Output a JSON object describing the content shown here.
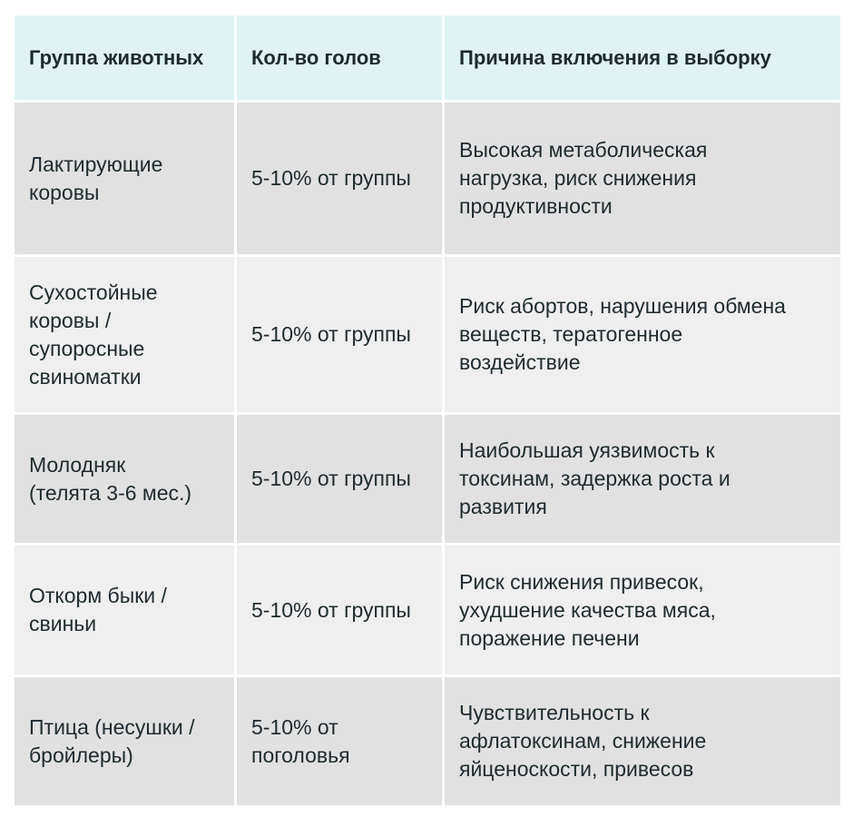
{
  "table": {
    "headers": [
      "Группа животных",
      "Кол-во голов",
      "Причина включения в выборку"
    ],
    "rows": [
      {
        "group": "Лактирующие\nкоровы",
        "count": "5-10% от группы",
        "reason": "Высокая метаболическая\nнагрузка, риск снижения\nпродуктивности"
      },
      {
        "group": "Сухостойные\nкоровы /\nсупоросные\nсвиноматки",
        "count": "5-10% от группы",
        "reason": "Риск абортов, нарушения обмена\nвеществ, тератогенное\nвоздействие"
      },
      {
        "group": "Молодняк\n(телята 3-6 мес.)",
        "count": "5-10% от группы",
        "reason": "Наибольшая уязвимость к\nтоксинам, задержка роста и\nразвития"
      },
      {
        "group": "Откорм быки /\nсвиньи",
        "count": "5-10% от группы",
        "reason": "Риск снижения привесок,\nухудшение качества мяса,\nпоражение печени"
      },
      {
        "group": "Птица (несушки /\nбройлеры)",
        "count": "5-10% от\nпоголовья",
        "reason": "Чувствительность к\nафлатоксинам, снижение\nяйценоскости, привесов"
      }
    ]
  }
}
